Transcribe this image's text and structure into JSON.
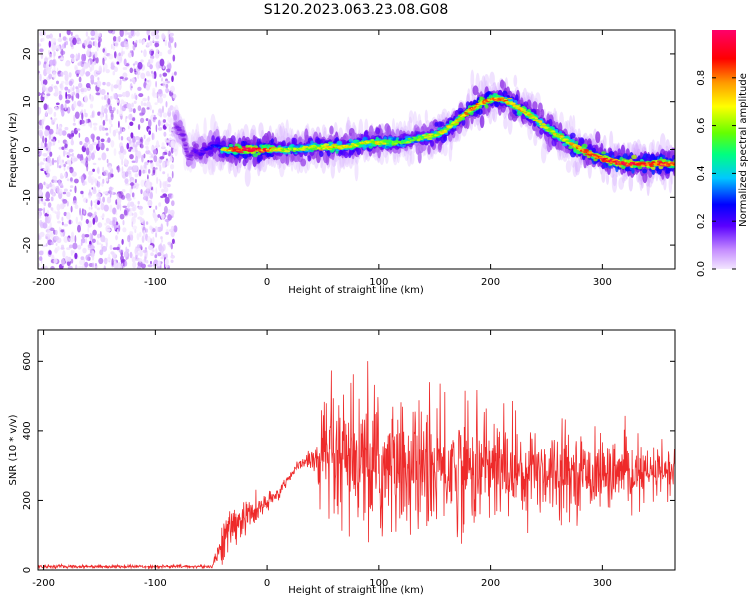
{
  "title": "S120.2023.063.23.08.G08",
  "colors": {
    "snr_line": "#ee2a2a",
    "axis": "#000000",
    "background": "#ffffff",
    "colormap": [
      "#f3e6ff",
      "#d2a6ff",
      "#8a2be2",
      "#5a00ff",
      "#0000ff",
      "#00c8ff",
      "#00ff80",
      "#66ff00",
      "#ffff00",
      "#ff9900",
      "#ff0000",
      "#ff006a"
    ]
  },
  "chart_data": [
    {
      "type": "heatmap",
      "xlabel": "Height of straight line (km)",
      "ylabel": "Frequency (Hz)",
      "xlim": [
        -205,
        365
      ],
      "ylim": [
        -25,
        25
      ],
      "xticks": [
        -200,
        -100,
        0,
        100,
        200,
        300
      ],
      "yticks": [
        -20,
        -10,
        0,
        10,
        20
      ],
      "colorbar": {
        "label": "Normalized spectral amplitude",
        "range": [
          0,
          1
        ],
        "ticks": [
          0.0,
          0.2,
          0.4,
          0.6,
          0.8
        ]
      },
      "noise_region": {
        "x_range": [
          -205,
          -82
        ],
        "description_level": "low amplitude scatter"
      },
      "ridge": {
        "x": [
          -82,
          -75,
          -70,
          -65,
          -60,
          -55,
          -50,
          -45,
          -40,
          -30,
          -20,
          -10,
          0,
          10,
          20,
          30,
          40,
          50,
          60,
          70,
          80,
          90,
          100,
          110,
          120,
          130,
          140,
          150,
          160,
          170,
          180,
          190,
          200,
          210,
          220,
          230,
          240,
          250,
          260,
          270,
          280,
          290,
          300,
          310,
          320,
          330,
          340,
          350,
          365
        ],
        "y": [
          5,
          3,
          -2,
          0,
          -1,
          0,
          0.5,
          1,
          0,
          0,
          0,
          0,
          0,
          0,
          0,
          0,
          0.5,
          0.5,
          0.5,
          0.5,
          1,
          1.5,
          1.5,
          1.5,
          1.5,
          2,
          2.5,
          3,
          4,
          6,
          8,
          9.5,
          10.5,
          10.5,
          9.5,
          8,
          6.5,
          4.5,
          3,
          1.5,
          0,
          -1,
          -2,
          -2.5,
          -3,
          -3,
          -3,
          -3,
          -3
        ],
        "amplitude": [
          0.3,
          0.35,
          0.3,
          0.4,
          0.45,
          0.5,
          0.55,
          0.6,
          0.65,
          0.85,
          0.9,
          0.9,
          0.85,
          0.7,
          0.65,
          0.65,
          0.7,
          0.7,
          0.75,
          0.7,
          0.7,
          0.7,
          0.7,
          0.65,
          0.6,
          0.6,
          0.65,
          0.7,
          0.7,
          0.75,
          0.8,
          0.8,
          0.8,
          0.8,
          0.75,
          0.75,
          0.7,
          0.7,
          0.7,
          0.75,
          0.8,
          0.85,
          0.9,
          0.9,
          0.9,
          0.9,
          0.9,
          0.9,
          0.85
        ]
      }
    },
    {
      "type": "line",
      "xlabel": "Height of straight line (km)",
      "ylabel": "SNR (10 * v/v)",
      "xlim": [
        -205,
        365
      ],
      "ylim": [
        0,
        690
      ],
      "xticks": [
        -200,
        -100,
        0,
        100,
        200,
        300
      ],
      "yticks": [
        0,
        200,
        400,
        600
      ],
      "series": [
        {
          "color": "#ee2a2a",
          "envelope_x": [
            -205,
            -50,
            -45,
            -40,
            -30,
            -20,
            -10,
            0,
            10,
            20,
            30,
            40,
            50,
            60,
            70,
            80,
            90,
            100,
            120,
            140,
            160,
            180,
            200,
            220,
            240,
            260,
            280,
            300,
            320,
            340,
            365
          ],
          "envelope_y": [
            10,
            10,
            40,
            80,
            130,
            150,
            170,
            190,
            220,
            270,
            305,
            320,
            310,
            300,
            295,
            295,
            290,
            290,
            290,
            290,
            290,
            290,
            290,
            290,
            290,
            285,
            280,
            275,
            275,
            275,
            280
          ],
          "spread": [
            5,
            5,
            30,
            60,
            60,
            50,
            40,
            30,
            20,
            15,
            15,
            30,
            150,
            180,
            180,
            180,
            180,
            190,
            170,
            170,
            160,
            150,
            140,
            130,
            120,
            110,
            90,
            90,
            80,
            70,
            70
          ]
        }
      ]
    }
  ]
}
